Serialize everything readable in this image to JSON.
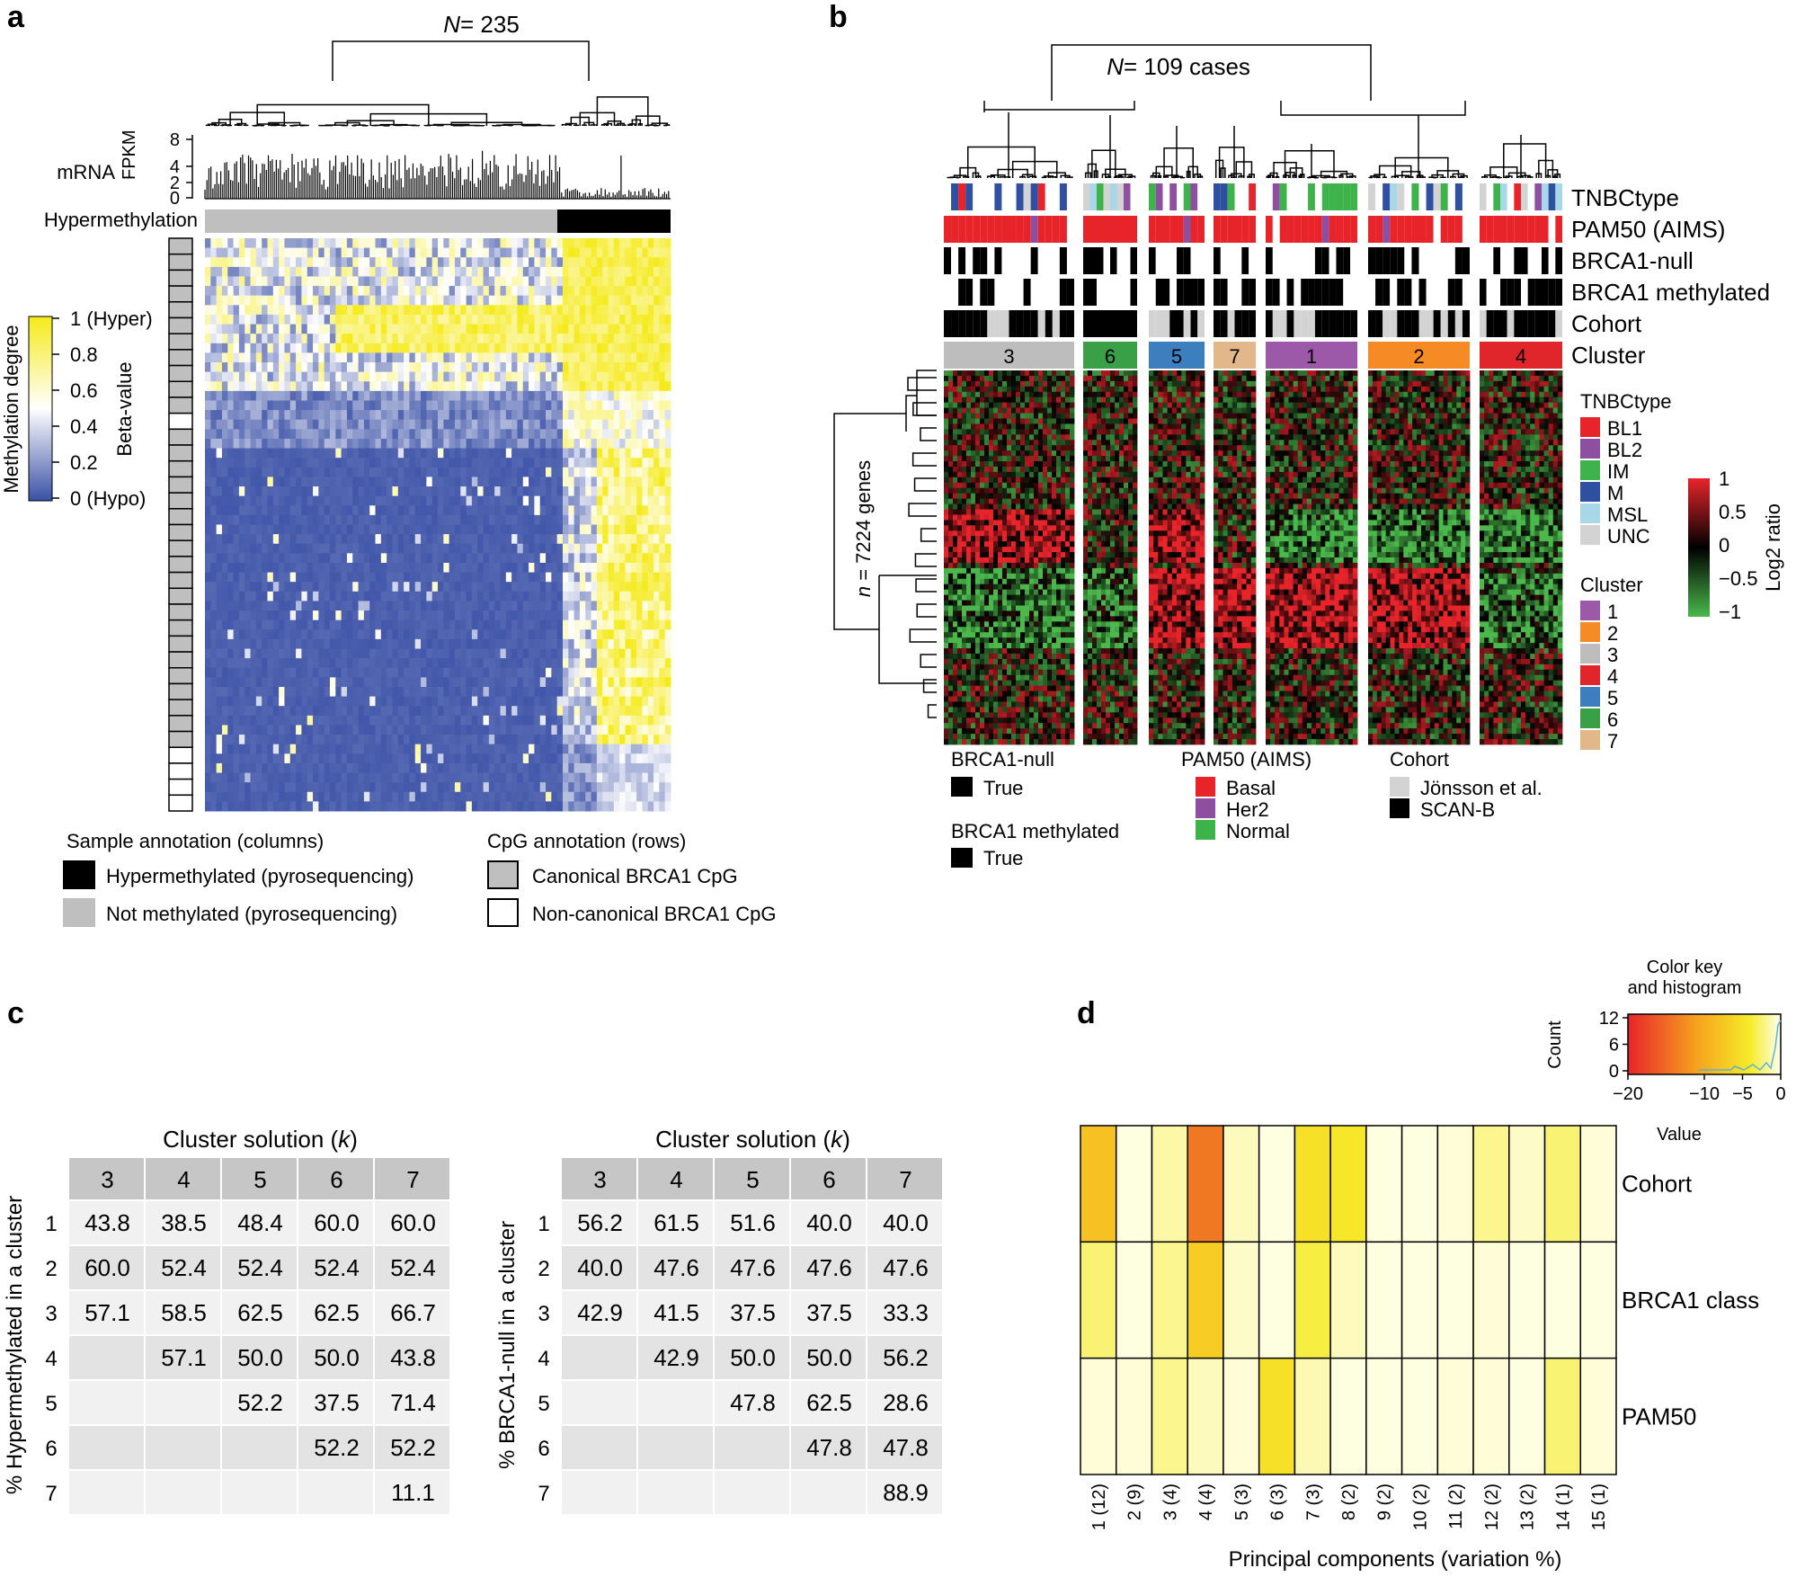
{
  "panel_letters": {
    "a": "a",
    "b": "b",
    "c": "c",
    "d": "d"
  },
  "colors": {
    "hyper": "#f5ea1a",
    "mid": "#ffffff",
    "hypo": "#3a50a6",
    "grey": "#bfbfbf",
    "black": "#000000",
    "red": "#e22b2b",
    "green": "#4bb84b",
    "darkred": "#6a1010",
    "table_header": "#c6c6c6",
    "table_row_light": "#f1f1f1",
    "table_row_dark": "#e3e3e3"
  },
  "panel_a": {
    "title_prefix": "N",
    "title_suffix": " = 235",
    "mrna_label": "mRNA",
    "fpkm_label": "FPKM",
    "fpkm_ticks": [
      "8",
      "4",
      "2",
      "0"
    ],
    "hypermethylation_label": "Hypermethylation",
    "color_key_label": "Methylation degree",
    "beta_label": "Beta-value",
    "scale_ticks": [
      "1 (Hyper)",
      "0.8",
      "0.6",
      "0.4",
      "0.2",
      "0 (Hypo)"
    ],
    "legend_sample_title": "Sample annotation (columns)",
    "legend_sample_items": [
      "Hypermethylated (pyrosequencing)",
      "Not methylated (pyrosequencing)"
    ],
    "legend_cpg_title": "CpG annotation (rows)",
    "legend_cpg_items": [
      "Canonical BRCA1 CpG",
      "Non-canonical BRCA1 CpG"
    ]
  },
  "panel_b": {
    "title_prefix": "N",
    "title_suffix": " = 109 cases",
    "genes_prefix": "n",
    "genes_suffix": " = 7224 genes",
    "track_labels": [
      "TNBCtype",
      "PAM50 (AIMS)",
      "BRCA1-null",
      "BRCA1 methylated",
      "Cohort",
      "Cluster"
    ],
    "cluster_order": [
      "3",
      "6",
      "5",
      "7",
      "1",
      "2",
      "4"
    ],
    "tnbc_legend_title": "TNBCtype",
    "tnbc_legend": [
      {
        "label": "BL1",
        "color": "#e8242b"
      },
      {
        "label": "BL2",
        "color": "#8e4fa0"
      },
      {
        "label": "IM",
        "color": "#3eb24b"
      },
      {
        "label": "M",
        "color": "#2f4fa0"
      },
      {
        "label": "MSL",
        "color": "#a8d8e8"
      },
      {
        "label": "UNC",
        "color": "#d3d3d3"
      }
    ],
    "cluster_legend_title": "Cluster",
    "cluster_legend": [
      {
        "label": "1",
        "color": "#9b59a8"
      },
      {
        "label": "2",
        "color": "#f68a25"
      },
      {
        "label": "3",
        "color": "#bdbdbd"
      },
      {
        "label": "4",
        "color": "#e0262b"
      },
      {
        "label": "5",
        "color": "#3d7ebf"
      },
      {
        "label": "6",
        "color": "#3aa048"
      },
      {
        "label": "7",
        "color": "#e2b88a"
      }
    ],
    "log2_label": "Log2 ratio",
    "log2_ticks": [
      "1",
      "0.5",
      "0",
      "−0.5",
      "−1"
    ],
    "brca1null_title": "BRCA1-null",
    "brca1null_item": "True",
    "brca1meth_title": "BRCA1 methylated",
    "brca1meth_item": "True",
    "pam50_title": "PAM50 (AIMS)",
    "pam50_items": [
      {
        "label": "Basal",
        "color": "#e8242b"
      },
      {
        "label": "Her2",
        "color": "#8e4fa0"
      },
      {
        "label": "Normal",
        "color": "#3eb24b"
      }
    ],
    "cohort_title": "Cohort",
    "cohort_items": [
      {
        "label": "Jönsson et al.",
        "color": "#d3d3d3"
      },
      {
        "label": "SCAN-B",
        "color": "#000000"
      }
    ]
  },
  "chart_data": [
    {
      "type": "table",
      "title": "Cluster solution (k)",
      "ylabel": "% Hypermethylated in a cluster",
      "columns": [
        "3",
        "4",
        "5",
        "6",
        "7"
      ],
      "rows": [
        "1",
        "2",
        "3",
        "4",
        "5",
        "6",
        "7"
      ],
      "values": [
        [
          "43.8",
          "38.5",
          "48.4",
          "60.0",
          "60.0"
        ],
        [
          "60.0",
          "52.4",
          "52.4",
          "52.4",
          "52.4"
        ],
        [
          "57.1",
          "58.5",
          "62.5",
          "62.5",
          "66.7"
        ],
        [
          "",
          "57.1",
          "50.0",
          "50.0",
          "43.8"
        ],
        [
          "",
          "",
          "52.2",
          "37.5",
          "71.4"
        ],
        [
          "",
          "",
          "",
          "52.2",
          "52.2"
        ],
        [
          "",
          "",
          "",
          "",
          "11.1"
        ]
      ]
    },
    {
      "type": "table",
      "title": "Cluster solution (k)",
      "ylabel": "% BRCA1-null in a cluster",
      "columns": [
        "3",
        "4",
        "5",
        "6",
        "7"
      ],
      "rows": [
        "1",
        "2",
        "3",
        "4",
        "5",
        "6",
        "7"
      ],
      "values": [
        [
          "56.2",
          "61.5",
          "51.6",
          "40.0",
          "40.0"
        ],
        [
          "40.0",
          "47.6",
          "47.6",
          "47.6",
          "47.6"
        ],
        [
          "42.9",
          "41.5",
          "37.5",
          "37.5",
          "33.3"
        ],
        [
          "",
          "42.9",
          "50.0",
          "50.0",
          "56.2"
        ],
        [
          "",
          "",
          "47.8",
          "62.5",
          "28.6"
        ],
        [
          "",
          "",
          "",
          "47.8",
          "47.8"
        ],
        [
          "",
          "",
          "",
          "",
          "88.9"
        ]
      ]
    },
    {
      "type": "heatmap",
      "xlabel": "Principal components (variation %)",
      "x": [
        "1 (12)",
        "2 (9)",
        "3 (4)",
        "4 (4)",
        "5 (3)",
        "6 (3)",
        "7 (3)",
        "8 (2)",
        "9 (2)",
        "10 (2)",
        "11 (2)",
        "12 (2)",
        "13 (2)",
        "14 (1)",
        "15 (1)"
      ],
      "y": [
        "Cohort",
        "BRCA1 class",
        "PAM50"
      ],
      "values": [
        [
          -8,
          -0.3,
          -1.5,
          -14,
          -1,
          -0.3,
          -5,
          -4.5,
          -0.3,
          -0.3,
          -0.5,
          -2,
          -0.8,
          -2.5,
          -0.5
        ],
        [
          -2.5,
          -0.3,
          -2,
          -7,
          -0.8,
          -0.3,
          -3.5,
          -1,
          -0.3,
          -0.3,
          -0.3,
          -0.5,
          -0.3,
          -0.3,
          -0.3
        ],
        [
          -0.5,
          -0.5,
          -2,
          -1,
          -0.5,
          -5,
          -1.2,
          -0.3,
          -0.3,
          -0.3,
          -0.5,
          -0.5,
          -0.3,
          -2.5,
          -0.5
        ]
      ],
      "color_key": {
        "title": "Color key and histogram",
        "xlabel": "Value",
        "ylabel": "Count",
        "x_ticks": [
          "−20",
          "−10",
          "−5",
          "0"
        ],
        "y_ticks": [
          "12",
          "6",
          "0"
        ],
        "range": [
          -20,
          0
        ]
      }
    }
  ]
}
